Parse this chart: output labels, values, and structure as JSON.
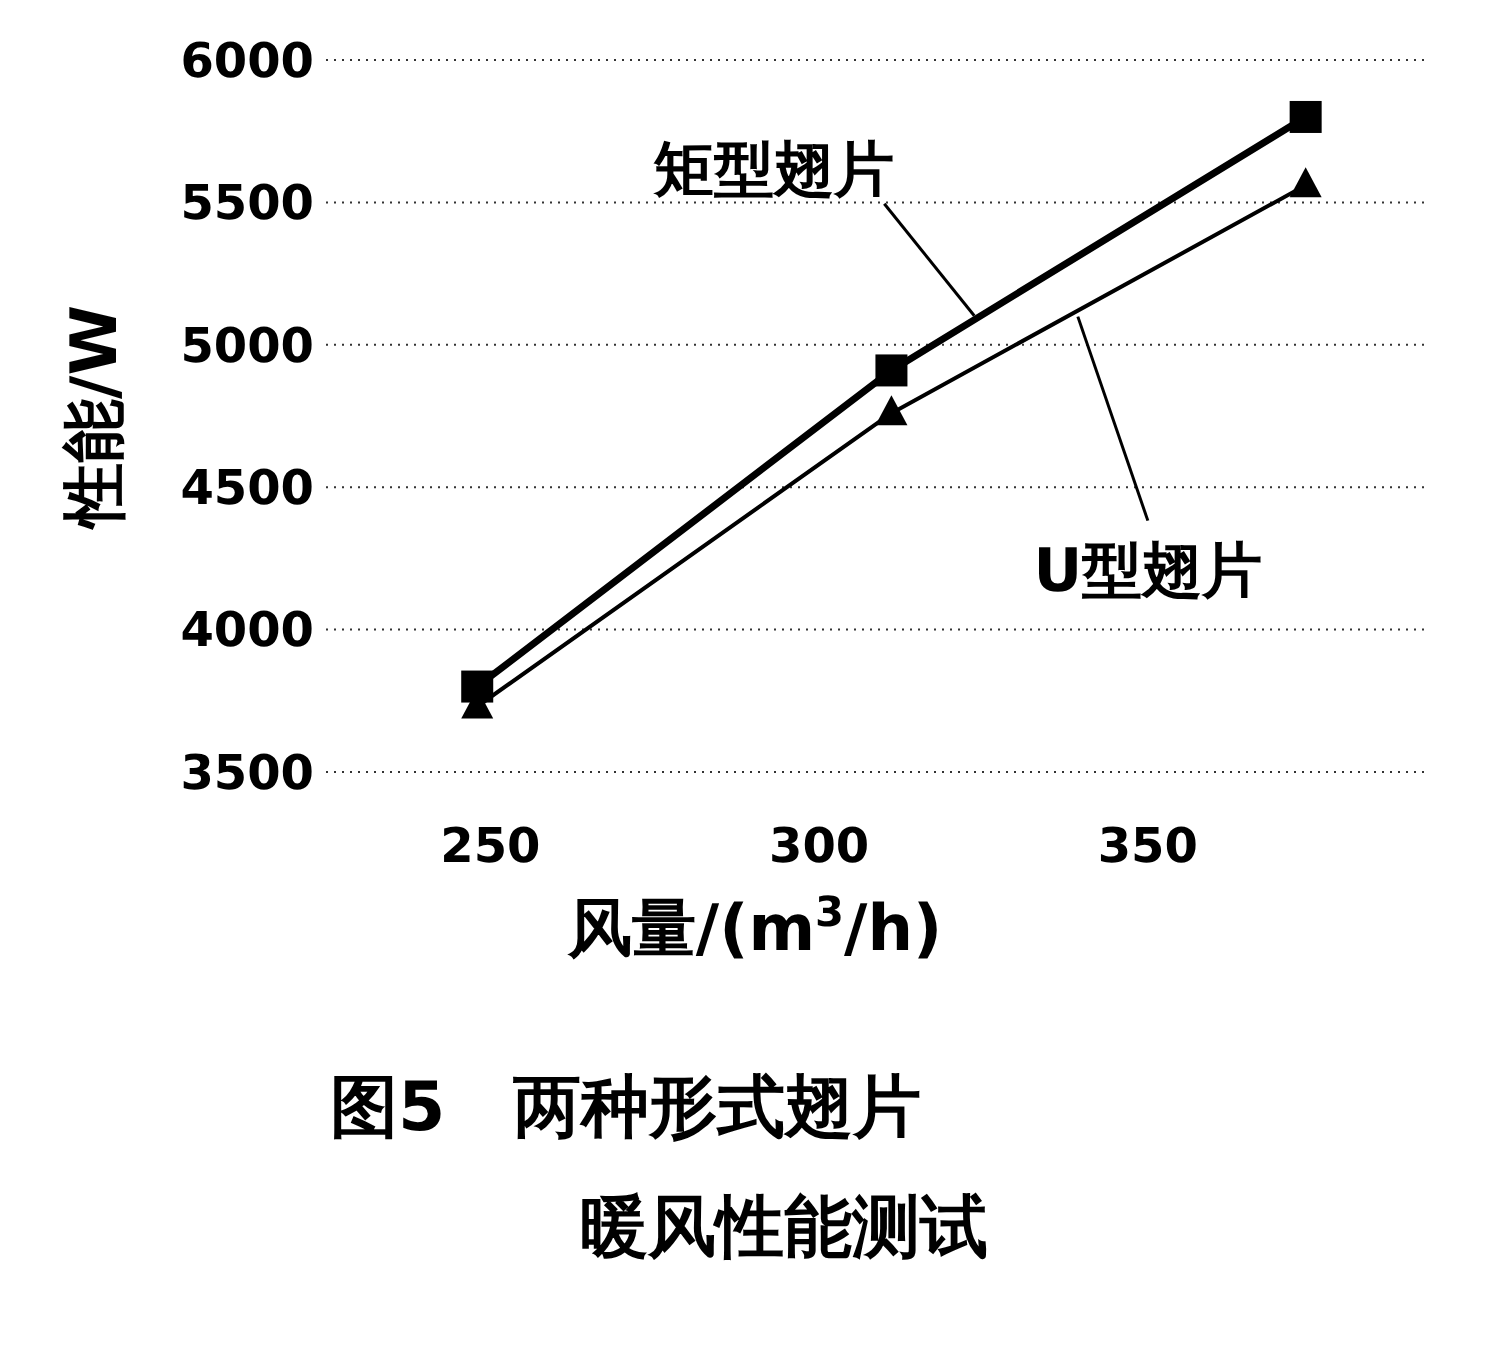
{
  "chart_data": {
    "type": "line",
    "title": "图5　两种形式翅片",
    "subtitle": "暖风性能测试",
    "xlabel": "风量/(m$^{3}$/h)",
    "ylabel": "性能/W",
    "x": [
      248,
      311,
      374
    ],
    "series": [
      {
        "name": "矩型翅片",
        "color": "#000000",
        "marker": "square",
        "values": [
          3800,
          4910,
          5800
        ]
      },
      {
        "name": "U型翅片",
        "color": "#000000",
        "marker": "triangle",
        "values": [
          3730,
          4760,
          5560
        ]
      }
    ],
    "xlim": [
      225,
      392
    ],
    "xticks": [
      250,
      300,
      350
    ],
    "ylim": [
      3500,
      6000
    ],
    "yticks": [
      3500,
      4000,
      4500,
      5000,
      5500,
      6000
    ],
    "grid": "y",
    "line_style": "solid"
  }
}
